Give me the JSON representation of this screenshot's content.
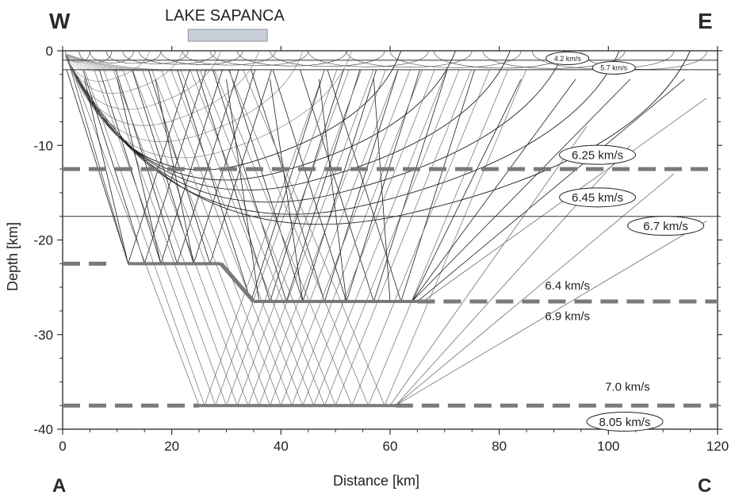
{
  "chart_data": {
    "type": "raytrace-section",
    "xlabel": "Distance   [km]",
    "ylabel": "Depth   [km]",
    "xlim": [
      0,
      120
    ],
    "ylim": [
      -40,
      0
    ],
    "x_ticks": [
      0,
      20,
      40,
      60,
      80,
      100,
      120
    ],
    "y_ticks": [
      0,
      -10,
      -20,
      -30,
      -40
    ],
    "x_tick_labels": [
      "0",
      "20",
      "40",
      "60",
      "80",
      "100",
      120
    ],
    "y_tick_labels": [
      "0",
      "-10",
      "-20",
      "-30",
      "-40"
    ],
    "corner_labels": {
      "top_left": "W",
      "top_right": "E",
      "bottom_left": "A",
      "bottom_right": "C"
    },
    "lake": {
      "label": "LAKE SAPANCA",
      "x_start": 23,
      "x_end": 37.5
    },
    "colors": {
      "rays": "#1e1e1e",
      "boundaries": "#7a7a7a",
      "background": "#ffffff"
    },
    "interfaces": [
      {
        "depth": -1.0,
        "style": "solid",
        "segments": [
          [
            0,
            120
          ]
        ]
      },
      {
        "depth": -2.0,
        "style": "solid",
        "segments": [
          [
            0,
            120
          ]
        ]
      },
      {
        "depth": -12.5,
        "style": "dashed",
        "segments": [
          [
            0,
            120
          ]
        ]
      },
      {
        "depth": -17.5,
        "style": "solid",
        "segments": [
          [
            0,
            120
          ]
        ]
      },
      {
        "depth": -22.5,
        "style": "dashed",
        "segments": [
          [
            0,
            8
          ]
        ]
      },
      {
        "depth": -22.5,
        "style": "solid-thick",
        "segments": [
          [
            12,
            29
          ]
        ]
      },
      {
        "depth": -26.5,
        "style": "solid-thick",
        "segments": [
          [
            35,
            65
          ]
        ]
      },
      {
        "depth": -26.5,
        "style": "dashed",
        "segments": [
          [
            65,
            120
          ]
        ]
      },
      {
        "depth": -37.5,
        "style": "dashed",
        "segments": [
          [
            0,
            25
          ]
        ]
      },
      {
        "depth": -37.5,
        "style": "solid-thick",
        "segments": [
          [
            25,
            61
          ]
        ]
      },
      {
        "depth": -37.5,
        "style": "dashed",
        "segments": [
          [
            61,
            120
          ]
        ]
      }
    ],
    "moho_step": {
      "from": [
        29,
        -22.5
      ],
      "to": [
        35,
        -26.5
      ]
    },
    "velocity_labels": [
      {
        "text": "4.2 km/s",
        "x": 92.5,
        "y": -0.8,
        "oval": true,
        "size": "small"
      },
      {
        "text": "5.7 km/s",
        "x": 101,
        "y": -1.8,
        "oval": true,
        "size": "small"
      },
      {
        "text": "6.25 km/s",
        "x": 98,
        "y": -11.0,
        "oval": true,
        "size": "large"
      },
      {
        "text": "6.45 km/s",
        "x": 98,
        "y": -15.5,
        "oval": true,
        "size": "large"
      },
      {
        "text": "6.7 km/s",
        "x": 110.5,
        "y": -18.5,
        "oval": true,
        "size": "large"
      },
      {
        "text": "6.4 km/s",
        "x": 92.5,
        "y": -24.8,
        "oval": false,
        "size": "large"
      },
      {
        "text": "6.9 km/s",
        "x": 92.5,
        "y": -28.0,
        "oval": false,
        "size": "large"
      },
      {
        "text": "7.0 km/s",
        "x": 103.5,
        "y": -35.5,
        "oval": false,
        "size": "large"
      },
      {
        "text": "8.05 km/s",
        "x": 103,
        "y": -39.2,
        "oval": true,
        "size": "large"
      }
    ],
    "source_x": 0.5,
    "turning_rays": [
      {
        "x0": 0.5,
        "x1": 115,
        "depth": -17.2
      },
      {
        "x0": 0.5,
        "x1": 102,
        "depth": -16.2
      },
      {
        "x0": 0.5,
        "x1": 92,
        "depth": -15.0
      },
      {
        "x0": 0.5,
        "x1": 82,
        "depth": -13.8
      },
      {
        "x0": 0.5,
        "x1": 72,
        "depth": -12.8
      },
      {
        "x0": 0.5,
        "x1": 62,
        "depth": -11.8
      },
      {
        "x0": 0.5,
        "x1": 53,
        "depth": -10.6
      },
      {
        "x0": 0.5,
        "x1": 44,
        "depth": -9.0
      },
      {
        "x0": 0.5,
        "x1": 36,
        "depth": -7.4
      },
      {
        "x0": 0.5,
        "x1": 29,
        "depth": -5.8
      },
      {
        "x0": 0.5,
        "x1": 22,
        "depth": -4.2
      },
      {
        "x0": 0.5,
        "x1": 16,
        "depth": -3.0
      }
    ],
    "top_arcs": [
      [
        0.5,
        5
      ],
      [
        3,
        9
      ],
      [
        5,
        13
      ],
      [
        8,
        18
      ],
      [
        11,
        23
      ],
      [
        14,
        28
      ],
      [
        18,
        33
      ],
      [
        22,
        39
      ],
      [
        27,
        45
      ],
      [
        32,
        52
      ],
      [
        38,
        59
      ],
      [
        45,
        67
      ],
      [
        52,
        75
      ],
      [
        60,
        84
      ],
      [
        68,
        93
      ],
      [
        77,
        103
      ],
      [
        86,
        112
      ],
      [
        95,
        118
      ]
    ],
    "reflection_points_mid": [
      [
        12,
        -22.5
      ],
      [
        15,
        -22.5
      ],
      [
        18,
        -22.5
      ],
      [
        21,
        -22.5
      ],
      [
        24,
        -22.5
      ],
      [
        27,
        -22.5
      ],
      [
        34.5,
        -26.5
      ],
      [
        38,
        -26.5
      ],
      [
        41,
        -26.5
      ],
      [
        44,
        -26.5
      ],
      [
        48,
        -26.5
      ],
      [
        52,
        -26.5
      ],
      [
        57,
        -26.5
      ],
      [
        62,
        -26.5
      ]
    ],
    "reflection_points_deep": [
      [
        26,
        -37.5
      ],
      [
        28,
        -37.5
      ],
      [
        30,
        -37.5
      ],
      [
        32,
        -37.5
      ],
      [
        34,
        -37.5
      ],
      [
        36,
        -37.5
      ],
      [
        38,
        -37.5
      ],
      [
        40,
        -37.5
      ],
      [
        42,
        -37.5
      ],
      [
        44,
        -37.5
      ],
      [
        46,
        -37.5
      ],
      [
        48,
        -37.5
      ],
      [
        50,
        -37.5
      ],
      [
        53,
        -37.5
      ],
      [
        56,
        -37.5
      ],
      [
        59,
        -37.5
      ]
    ],
    "refraction_rays": [
      [
        [
          12,
          -22.5
        ],
        [
          4,
          -3
        ]
      ],
      [
        [
          18,
          -22.5
        ],
        [
          10,
          -3
        ]
      ],
      [
        [
          24,
          -22.5
        ],
        [
          17,
          -3
        ]
      ],
      [
        [
          36,
          -26.5
        ],
        [
          30,
          -3
        ]
      ],
      [
        [
          44,
          -26.5
        ],
        [
          38,
          -3
        ]
      ],
      [
        [
          52,
          -26.5
        ],
        [
          47,
          -3
        ]
      ],
      [
        [
          60,
          -26.5
        ],
        [
          57,
          -3
        ]
      ],
      [
        [
          64,
          -26.5
        ],
        [
          84,
          -3
        ]
      ],
      [
        [
          64,
          -26.5
        ],
        [
          94,
          -3
        ]
      ],
      [
        [
          64,
          -26.5
        ],
        [
          104,
          -3
        ]
      ],
      [
        [
          65,
          -26.5
        ],
        [
          114,
          -3
        ]
      ]
    ],
    "far_rays": [
      [
        [
          66,
          -26.5
        ],
        [
          118,
          -5
        ]
      ],
      [
        [
          60,
          -37.5
        ],
        [
          96,
          -8
        ]
      ],
      [
        [
          61,
          -37.5
        ],
        [
          104,
          -10
        ]
      ],
      [
        [
          61,
          -37.5
        ],
        [
          112,
          -13
        ]
      ],
      [
        [
          61,
          -37.5
        ],
        [
          118,
          -18
        ]
      ]
    ]
  }
}
